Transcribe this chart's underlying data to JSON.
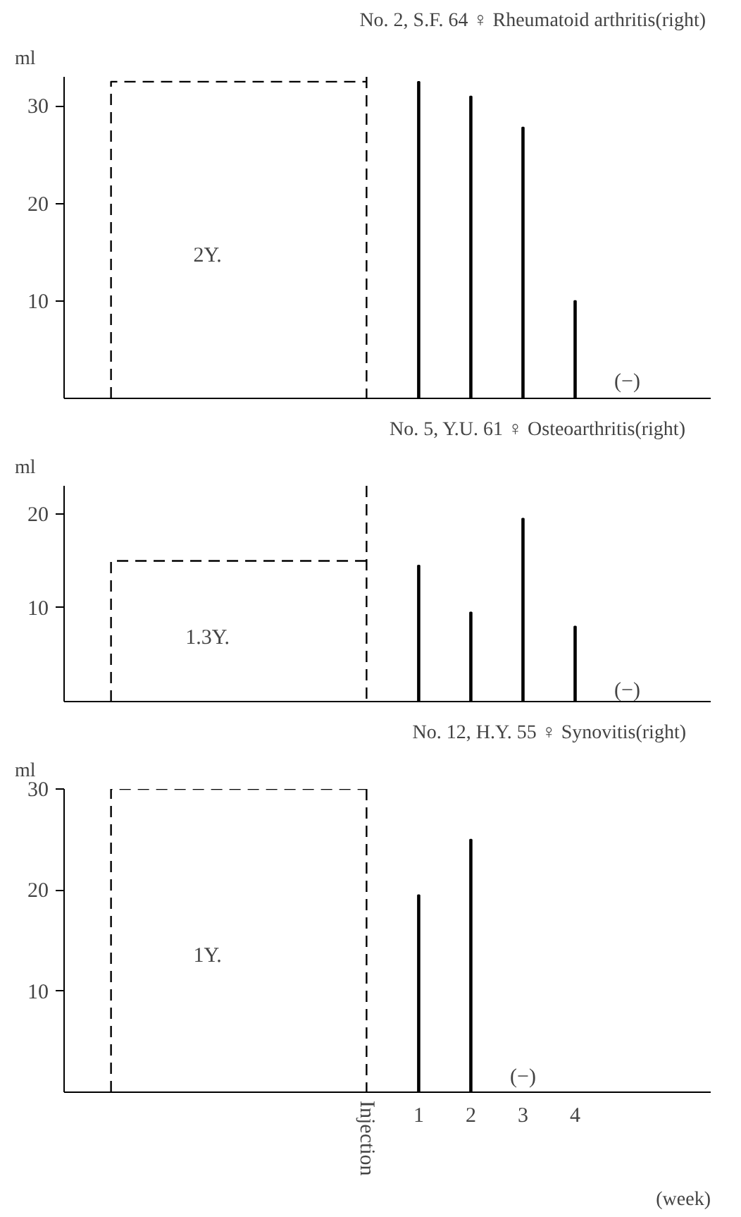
{
  "chart_data": [
    {
      "type": "bar",
      "title": "No. 2, S.F.  64 ♀ Rheumatoid arthritis(right)",
      "ylabel": "ml",
      "xlim": [
        -5.8,
        6.6
      ],
      "ylim": [
        0,
        33
      ],
      "yticks": [
        10,
        20,
        30
      ],
      "tick_labels": "y",
      "grid": false,
      "series": [
        {
          "type": "line",
          "line_style": "dashed",
          "color": "#000000",
          "x": [
            -4.9,
            -4.9,
            0
          ],
          "values": [
            0,
            32.5,
            32.5
          ]
        },
        {
          "color": "#000000",
          "x": [
            1,
            2,
            3,
            4
          ],
          "values": [
            32.5,
            31,
            27.8,
            10
          ]
        }
      ],
      "ref_lines": [
        {
          "axis": "x",
          "value": 0,
          "line_style": "dashed",
          "color": "#000000"
        }
      ],
      "annotations": [
        "2Y.",
        "(−)"
      ]
    },
    {
      "type": "bar",
      "title": "No. 5, Y.U.      61 ♀ Osteoarthritis(right)",
      "ylabel": "ml",
      "xlim": [
        -5.8,
        6.6
      ],
      "ylim": [
        0,
        23
      ],
      "yticks": [
        10,
        20
      ],
      "tick_labels": "y",
      "grid": false,
      "series": [
        {
          "type": "line",
          "line_style": "dashed",
          "color": "#000000",
          "x": [
            -4.9,
            -4.9,
            0
          ],
          "values": [
            0,
            15,
            15
          ]
        },
        {
          "color": "#000000",
          "x": [
            1,
            2,
            3,
            4
          ],
          "values": [
            14.5,
            9.5,
            19.5,
            8
          ]
        }
      ],
      "ref_lines": [
        {
          "axis": "x",
          "value": 0,
          "line_style": "dashed",
          "color": "#000000"
        }
      ],
      "annotations": [
        "1.3Y.",
        "(−)"
      ]
    },
    {
      "type": "bar",
      "title": "No. 12, H.Y.      55 ♀ Synovitis(right)",
      "ylabel": "ml",
      "xlabel": "(week)",
      "xlim": [
        -5.8,
        6.6
      ],
      "ylim": [
        0,
        30
      ],
      "yticks": [
        10,
        20,
        30
      ],
      "xticks": [
        1,
        2,
        3,
        4
      ],
      "grid": false,
      "series": [
        {
          "type": "line",
          "line_style": "dashed",
          "color": "#000000",
          "x": [
            -4.9,
            -4.9,
            0
          ],
          "values": [
            0,
            30,
            30
          ]
        },
        {
          "color": "#000000",
          "x": [
            1,
            2
          ],
          "values": [
            19.5,
            25
          ]
        }
      ],
      "ref_lines": [
        {
          "axis": "x",
          "value": 0,
          "label": "Injection",
          "line_style": "dashed",
          "color": "#000000"
        }
      ],
      "annotations": [
        "1Y.",
        "(−)"
      ]
    }
  ]
}
